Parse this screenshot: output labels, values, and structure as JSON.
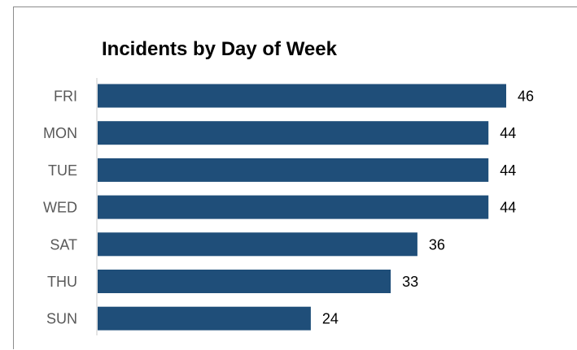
{
  "chart_data": {
    "type": "bar",
    "orientation": "horizontal",
    "title": "Incidents by Day of Week",
    "categories": [
      "FRI",
      "MON",
      "TUE",
      "WED",
      "SAT",
      "THU",
      "SUN"
    ],
    "values": [
      46,
      44,
      44,
      44,
      36,
      33,
      24
    ],
    "data_labels": [
      "46",
      "44",
      "44",
      "44",
      "36",
      "33",
      "24"
    ],
    "xlabel": "",
    "ylabel": "",
    "xlim": [
      0,
      46
    ],
    "grid": false,
    "legend": "none",
    "bar_color": "#1f4e79"
  }
}
